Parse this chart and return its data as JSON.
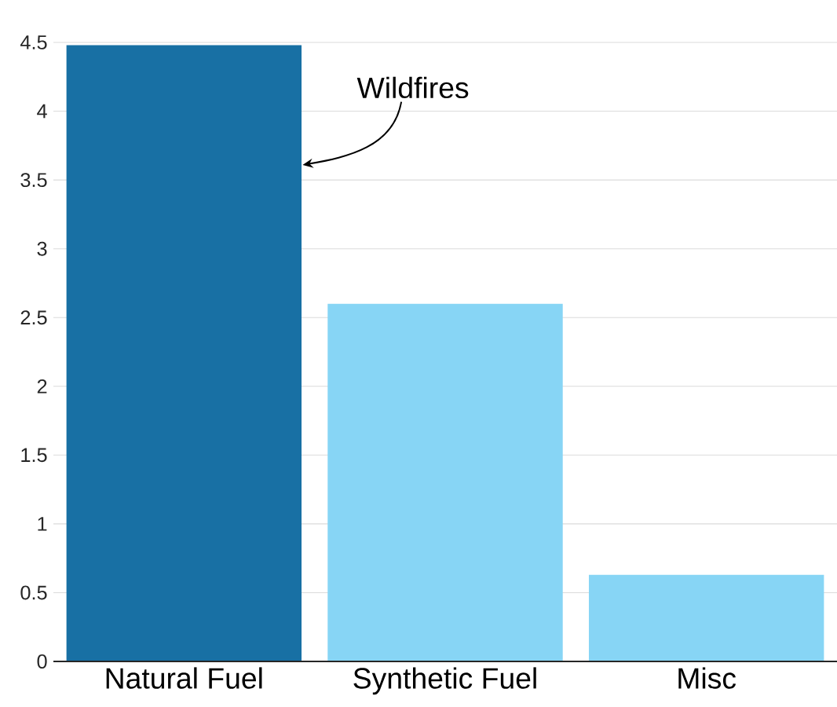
{
  "chart_data": {
    "type": "bar",
    "categories": [
      "Natural Fuel",
      "Synthetic Fuel",
      "Misc"
    ],
    "values": [
      4.48,
      2.6,
      0.63
    ],
    "colors": [
      "#1870a4",
      "#87d5f5",
      "#87d5f5"
    ],
    "ylim": [
      0,
      4.5
    ],
    "yticks": [
      0,
      0.5,
      1,
      1.5,
      2,
      2.5,
      3,
      3.5,
      4,
      4.5
    ],
    "grid": "y",
    "annotations": [
      "Wildfires"
    ]
  }
}
